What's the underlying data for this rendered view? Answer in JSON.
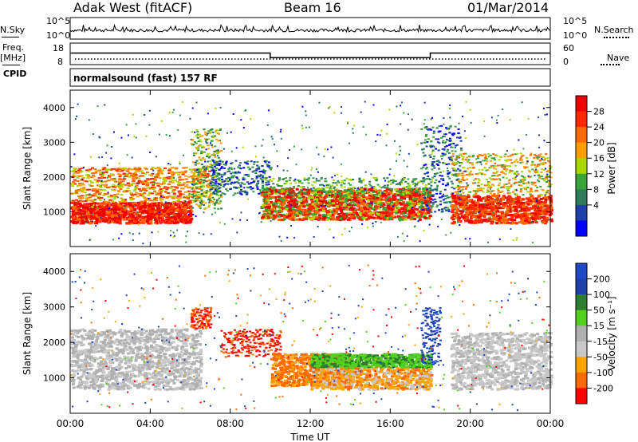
{
  "header": {
    "site": "Adak West (fitACF)",
    "beam": "Beam 16",
    "date": "01/Mar/2014"
  },
  "left_labels": {
    "nsky": "N.Sky",
    "freq": "Freq.",
    "freq_unit": "[MHz]",
    "cpid": "CPID"
  },
  "right_labels": {
    "nsearch": "N.Search",
    "nave": "Nave"
  },
  "noise_axis": {
    "top_label": "10^5",
    "bottom_label": "10^0"
  },
  "freq_axis": {
    "ticks": [
      "18",
      "8"
    ]
  },
  "nave_axis": {
    "ticks": [
      "60",
      "0"
    ]
  },
  "cpid_text": "normalsound (fast) 157 RF",
  "x_axis": {
    "label": "Time UT",
    "ticks": [
      "00:00",
      "04:00",
      "08:00",
      "12:00",
      "16:00",
      "20:00",
      "00:00"
    ]
  },
  "colors": {
    "power": [
      "#0000ff",
      "#1e40a8",
      "#2e7d58",
      "#3aa33a",
      "#a8d800",
      "#ff9c00",
      "#ff6a00",
      "#ff2a00",
      "#ee0000"
    ],
    "velocity": [
      "#ff0000",
      "#ff6a00",
      "#ffa200",
      "#c8c8c8",
      "#b0b0b0",
      "#54d01e",
      "#2e7d2e",
      "#1e40a8",
      "#1e48c8"
    ]
  },
  "chart_data": [
    {
      "type": "heatmap",
      "title": "Power",
      "ylabel": "Slant Range [km]",
      "xlabel": "",
      "ylim": [
        0,
        4500
      ],
      "yticks": [
        "4000",
        "3000",
        "2000",
        "1000"
      ],
      "colorbar": {
        "label": "Power [dB]",
        "ticks": [
          "28",
          "24",
          "20",
          "16",
          "12",
          "8",
          "4"
        ],
        "range": [
          0,
          32
        ]
      }
    },
    {
      "type": "heatmap",
      "title": "Velocity",
      "ylabel": "Slant Range [km]",
      "xlabel": "Time UT",
      "ylim": [
        0,
        4500
      ],
      "yticks": [
        "4000",
        "3000",
        "2000",
        "1000"
      ],
      "colorbar": {
        "label": "Velocity [m s⁻¹]",
        "ticks": [
          "200",
          "100",
          "50",
          "15",
          "-15",
          "-50",
          "-100",
          "-200"
        ],
        "range": [
          -250,
          250
        ]
      }
    },
    {
      "type": "line",
      "title": "",
      "series": [
        {
          "name": "Freq.",
          "x": [
            "00:00",
            "10:00",
            "10:00",
            "18:00",
            "18:00",
            "24:00"
          ],
          "values": [
            13.5,
            13.5,
            10.5,
            10.5,
            13.5,
            13.5
          ]
        }
      ]
    }
  ]
}
